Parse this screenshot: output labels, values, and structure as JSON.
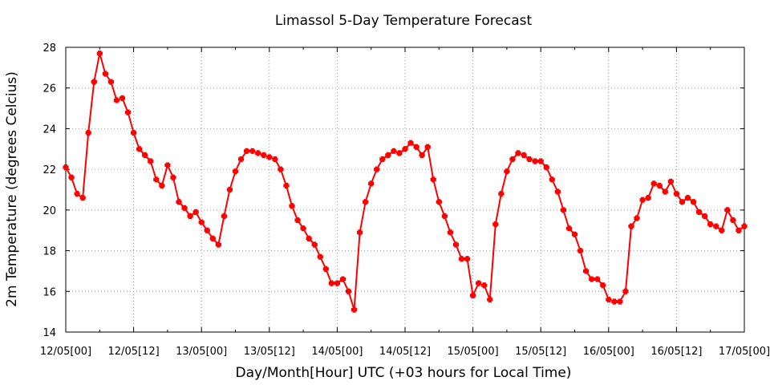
{
  "chart_data": {
    "type": "line",
    "title": "Limassol 5-Day Temperature Forecast",
    "xlabel": "Day/Month[Hour] UTC (+03 hours for Local Time)",
    "ylabel": "2m Temperature (degrees Celcius)",
    "ylim": [
      14,
      28
    ],
    "yticks": [
      14,
      16,
      18,
      20,
      22,
      24,
      26,
      28
    ],
    "xlim_hours": [
      0,
      120
    ],
    "xticks": [
      {
        "hour": 0,
        "label": "12/05[00]"
      },
      {
        "hour": 12,
        "label": "12/05[12]"
      },
      {
        "hour": 24,
        "label": "13/05[00]"
      },
      {
        "hour": 36,
        "label": "13/05[12]"
      },
      {
        "hour": 48,
        "label": "14/05[00]"
      },
      {
        "hour": 60,
        "label": "14/05[12]"
      },
      {
        "hour": 72,
        "label": "15/05[00]"
      },
      {
        "hour": 84,
        "label": "15/05[12]"
      },
      {
        "hour": 96,
        "label": "16/05[00]"
      },
      {
        "hour": 108,
        "label": "16/05[12]"
      },
      {
        "hour": 120,
        "label": "17/05[00]"
      }
    ],
    "grid": true,
    "color": "#ff0000",
    "series": [
      {
        "step_hours": 1,
        "values": [
          22.1,
          21.6,
          20.8,
          20.6,
          23.8,
          26.3,
          27.7,
          26.7,
          26.3,
          25.4,
          25.5,
          24.8,
          23.8,
          23.0,
          22.7,
          22.4,
          21.5,
          21.2,
          22.2,
          21.6,
          20.4,
          20.1,
          19.7,
          19.9,
          19.4,
          19.0,
          18.6,
          18.3,
          19.7,
          21.0,
          21.9,
          22.5,
          22.9,
          22.9,
          22.8,
          22.7,
          22.6,
          22.5,
          22.0,
          21.2,
          20.2,
          19.5,
          19.1,
          18.6,
          18.3,
          17.7,
          17.1,
          16.4,
          16.4,
          16.6,
          16.0,
          15.1,
          18.9,
          20.4,
          21.3,
          22.0,
          22.5,
          22.7,
          22.9,
          22.8,
          23.0,
          23.3,
          23.1,
          22.7,
          23.1,
          21.5,
          20.4,
          19.7,
          18.9,
          18.3,
          17.6,
          17.6,
          15.8,
          16.4,
          16.3,
          15.6,
          19.3,
          20.8,
          21.9,
          22.5,
          22.8,
          22.7,
          22.5,
          22.4,
          22.4,
          22.1,
          21.5,
          20.9,
          20.0,
          19.1,
          18.8,
          18.0,
          17.0,
          16.6,
          16.6,
          16.3,
          15.6,
          15.5,
          15.5,
          16.0,
          19.2,
          19.6,
          20.5,
          20.6,
          21.3,
          21.2,
          20.9,
          21.4,
          20.8,
          20.4,
          20.6,
          20.4,
          19.9,
          19.7,
          19.3,
          19.2,
          19.0,
          20.0,
          19.5,
          19.0,
          19.2
        ]
      }
    ]
  }
}
